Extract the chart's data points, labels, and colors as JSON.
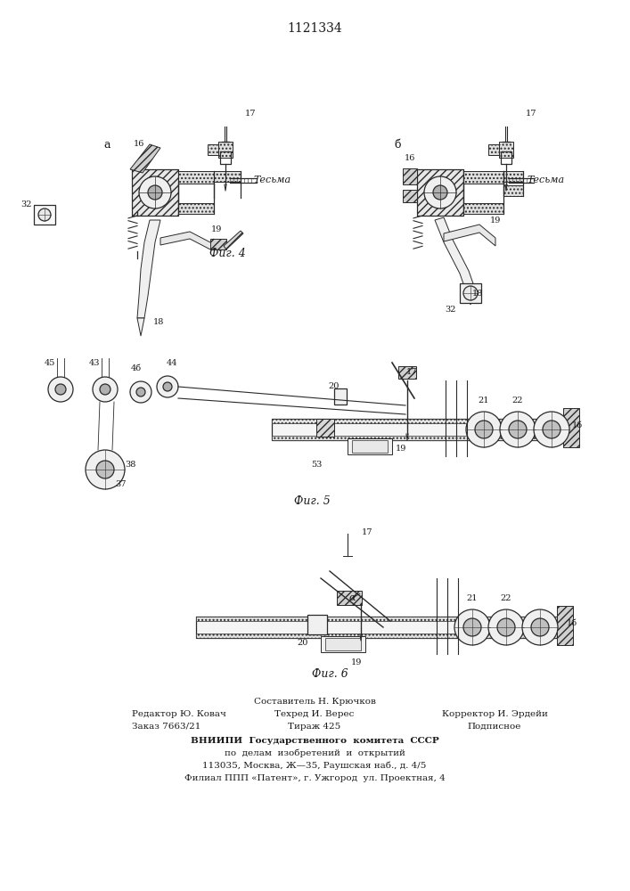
{
  "title": "1121334",
  "bg_color": "#ffffff",
  "fig4_caption": "Фиг. 4",
  "fig5_caption": "Фиг. 5",
  "fig6_caption": "Фиг. 6",
  "footer_line1_left": "Редактор Ю. Ковач",
  "footer_line1_center": "Составитель Н. Крючков",
  "footer_line1_right": "Корректор И. Эрдейи",
  "footer_line2_left": "Заказ 7663/21",
  "footer_line2_center": "Техред И. Верес",
  "footer_line2_right": "Подписное",
  "footer_line3_center": "Тираж 425",
  "footer_vnii": "ВНИИПИ  Государственного  комитета  СССР",
  "footer_po": "по  делам  изобретений  и  открытий",
  "footer_addr": "113035, Москва, Ж—35, Раушская наб., д. 4/5",
  "footer_filial": "Филиал ППП «Патент», г. Ужгород  ул. Проектная, 4"
}
